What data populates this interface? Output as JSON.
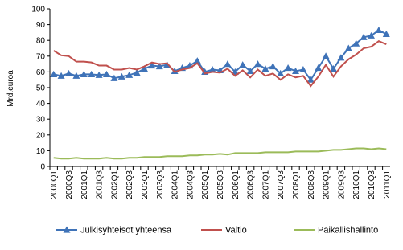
{
  "chart_data": {
    "type": "line",
    "y_label": "Mrd.euroa",
    "categories": [
      "2000Q1",
      null,
      "2000Q3",
      null,
      "2001Q1",
      null,
      "2001Q3",
      null,
      "2002Q1",
      null,
      "2002Q3",
      null,
      "2003Q1",
      null,
      "2003Q3",
      null,
      "2004Q1",
      null,
      "2004Q3",
      null,
      "2005Q1",
      null,
      "2005Q3",
      null,
      "2006Q1",
      null,
      "2006Q3",
      null,
      "2007Q1",
      null,
      "2007Q3",
      null,
      "2008Q1",
      null,
      "2008Q3",
      null,
      "2009Q1",
      null,
      "2009Q3",
      null,
      "2010Q1",
      null,
      "2010Q3",
      null,
      "2011Q1"
    ],
    "series": [
      {
        "name": "Julkisyhteisöt yhteensä",
        "color": "#3f73b8",
        "marker": "triangle",
        "values": [
          58.5,
          57.5,
          59,
          57.5,
          58.5,
          58.5,
          58,
          58.5,
          56,
          57,
          58,
          59.5,
          62,
          64,
          63.5,
          64.5,
          60.5,
          62.5,
          64,
          67,
          60,
          61.5,
          61,
          65,
          60,
          64.5,
          60.5,
          65,
          62,
          63.5,
          59,
          62.5,
          60.5,
          61.5,
          55,
          62.5,
          70,
          62,
          69,
          75,
          78,
          82,
          83,
          86.5,
          84
        ]
      },
      {
        "name": "Valtio",
        "color": "#c0504d",
        "values": [
          73.5,
          70.5,
          70,
          66.5,
          66.5,
          66,
          64,
          64,
          61.5,
          61.5,
          62.5,
          61.5,
          63.5,
          66,
          65,
          65.5,
          60,
          61.5,
          62.5,
          65.5,
          59,
          60,
          59.5,
          62,
          57.5,
          61,
          56.5,
          61.5,
          57.5,
          59,
          55,
          58.5,
          56.5,
          57.5,
          51,
          57,
          64.5,
          57,
          63.5,
          68,
          71,
          75,
          76,
          79.5,
          77.5
        ]
      },
      {
        "name": "Paikallishallinto",
        "color": "#9bbb59",
        "values": [
          5.5,
          5,
          5,
          5.5,
          5,
          5,
          5,
          5.5,
          5,
          5,
          5.5,
          5.5,
          6,
          6,
          6,
          6.5,
          6.5,
          6.5,
          7,
          7,
          7.5,
          7.5,
          8,
          7.5,
          8.5,
          8.5,
          8.5,
          8.5,
          9,
          9,
          9,
          9,
          9.5,
          9.5,
          9.5,
          9.5,
          10,
          10.5,
          10.5,
          11,
          11.5,
          11.5,
          11,
          11.5,
          11
        ]
      }
    ],
    "ylim": [
      0,
      100
    ],
    "yticks": [
      0,
      10,
      20,
      30,
      40,
      50,
      60,
      70,
      80,
      90,
      100
    ],
    "grid": false,
    "legend": "bottom"
  }
}
